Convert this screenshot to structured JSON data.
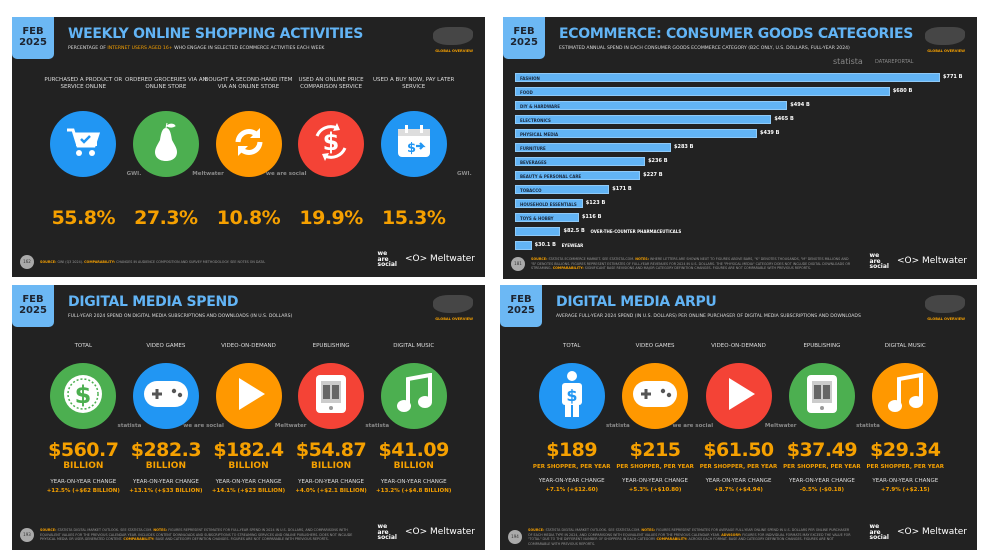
{
  "slides": [
    {
      "date": [
        "FEB",
        "2025"
      ],
      "title": "WEEKLY ONLINE SHOPPING ACTIVITIES",
      "subtitle_pre": "PERCENTAGE OF ",
      "subtitle_hl": "INTERNET USERS AGED 16+",
      "subtitle_post": " WHO ENGAGE IN SELECTED ECOMMERCE ACTIVITIES EACH WEEK",
      "region": "GLOBAL OVERVIEW",
      "items": [
        {
          "label": "PURCHASED A PRODUCT OR SERVICE ONLINE",
          "value": "55.8%",
          "icon": "shopping-cart-icon",
          "color": "#2196f3"
        },
        {
          "label": "ORDERED GROCERIES VIA AN ONLINE STORE",
          "value": "27.3%",
          "icon": "pear-icon",
          "color": "#4caf50"
        },
        {
          "label": "BOUGHT A SECOND-HAND ITEM VIA AN ONLINE STORE",
          "value": "10.8%",
          "icon": "recycle-arrows-icon",
          "color": "#ff9800"
        },
        {
          "label": "USED AN ONLINE PRICE COMPARISON SERVICE",
          "value": "19.9%",
          "icon": "price-compare-icon",
          "color": "#f44336"
        },
        {
          "label": "USED A BUY NOW, PAY LATER SERVICE",
          "value": "15.3%",
          "icon": "calendar-pay-icon",
          "color": "#2196f3"
        }
      ],
      "page": "162",
      "source_label": "SOURCE:",
      "source": "GWI (Q3 2024).",
      "comp_label": "COMPARABILITY:",
      "comp": "CHANGES IN AUDIENCE COMPOSITION AND SURVEY METHODOLOGY. SEE NOTES ON DATA."
    },
    {
      "date": [
        "FEB",
        "2025"
      ],
      "title": "ECOMMERCE: CONSUMER GOODS CATEGORIES",
      "subtitle": "ESTIMATED ANNUAL SPEND IN EACH CONSUMER GOODS ECOMMERCE CATEGORY (B2C ONLY, U.S. DOLLARS, FULL-YEAR 2024)",
      "region": "GLOBAL OVERVIEW",
      "watermark1": "statista",
      "watermark2": "DATAREPORTAL",
      "page": "181",
      "source_label": "SOURCE:",
      "source": "STATISTA ECOMMERCE MARKET. SEE STATISTA.COM.",
      "notes_label": "NOTES:",
      "notes": "WHERE LETTERS ARE SHOWN NEXT TO FIGURES ABOVE BARS, \"K\" DENOTES THOUSANDS, \"M\" DENOTES MILLIONS AND \"B\" DENOTES BILLIONS. FIGURES REPRESENT ESTIMATES OF FULL-YEAR REVENUES FOR 2024 IN U.S. DOLLARS. THE \"PHYSICAL MEDIA\" CATEGORY DOES NOT INCLUDE DIGITAL DOWNLOADS OR STREAMING.",
      "comp_label": "COMPARABILITY:",
      "comp": "SIGNIFICANT BASE REVISIONS AND MAJOR CATEGORY DEFINITION CHANGES. FIGURES ARE NOT COMPARABLE WITH PREVIOUS REPORTS."
    },
    {
      "date": [
        "FEB",
        "2025"
      ],
      "title": "DIGITAL MEDIA SPEND",
      "subtitle": "FULL-YEAR 2024 SPEND ON DIGITAL MEDIA SUBSCRIPTIONS AND DOWNLOADS (IN U.S. DOLLARS)",
      "region": "GLOBAL OVERVIEW",
      "unit": "BILLION",
      "yoy": "YEAR-ON-YEAR CHANGE",
      "items": [
        {
          "label": "TOTAL",
          "value": "$560.7",
          "change": "+12.5% (+$62 BILLION)",
          "icon": "dollar-coin-icon",
          "color": "#4caf50"
        },
        {
          "label": "VIDEO GAMES",
          "value": "$282.3",
          "change": "+13.1% (+$33 BILLION)",
          "icon": "gamepad-icon",
          "color": "#2196f3"
        },
        {
          "label": "VIDEO-ON-DEMAND",
          "value": "$182.4",
          "change": "+14.1% (+$23 BILLION)",
          "icon": "play-icon",
          "color": "#ff9800"
        },
        {
          "label": "EPUBLISHING",
          "value": "$54.87",
          "change": "+4.0% (+$2.1 BILLION)",
          "icon": "ebook-reader-icon",
          "color": "#f44336"
        },
        {
          "label": "DIGITAL MUSIC",
          "value": "$41.09",
          "change": "+13.2% (+$4.8 BILLION)",
          "icon": "music-note-icon",
          "color": "#4caf50"
        }
      ],
      "page": "193",
      "source_label": "SOURCE:",
      "source": "STATISTA DIGITAL MARKET OUTLOOK. SEE STATISTA.COM.",
      "notes_label": "NOTES:",
      "notes": "FIGURES REPRESENT ESTIMATES FOR FULL-YEAR SPEND IN 2024 IN U.S. DOLLARS, AND COMPARISONS WITH EQUIVALENT VALUES FOR THE PREVIOUS CALENDAR YEAR. INCLUDES CONTENT DOWNLOADS AND SUBSCRIPTIONS TO STREAMING SERVICES AND ONLINE PUBLISHERS. DOES NOT INCLUDE PHYSICAL MEDIA OR USER-GENERATED CONTENT.",
      "comp_label": "COMPARABILITY:",
      "comp": "BASE AND CATEGORY DEFINITION CHANGES. FIGURES ARE NOT COMPARABLE WITH PREVIOUS REPORTS."
    },
    {
      "date": [
        "FEB",
        "2025"
      ],
      "title": "DIGITAL MEDIA ARPU",
      "subtitle": "AVERAGE FULL-YEAR 2024 SPEND (IN U.S. DOLLARS) PER ONLINE PURCHASER OF DIGITAL MEDIA SUBSCRIPTIONS AND DOWNLOADS",
      "region": "GLOBAL OVERVIEW",
      "unit": "PER SHOPPER, PER YEAR",
      "yoy": "YEAR-ON-YEAR CHANGE",
      "items": [
        {
          "label": "TOTAL",
          "value": "$189",
          "change": "+7.1% (+$12.60)",
          "icon": "person-dollar-icon",
          "color": "#2196f3"
        },
        {
          "label": "VIDEO GAMES",
          "value": "$215",
          "change": "+5.3% (+$10.80)",
          "icon": "gamepad-icon",
          "color": "#ff9800"
        },
        {
          "label": "VIDEO-ON-DEMAND",
          "value": "$61.50",
          "change": "+8.7% (+$4.94)",
          "icon": "play-icon",
          "color": "#f44336"
        },
        {
          "label": "EPUBLISHING",
          "value": "$37.49",
          "change": "-0.5% (-$0.18)",
          "icon": "ebook-reader-icon",
          "color": "#4caf50"
        },
        {
          "label": "DIGITAL MUSIC",
          "value": "$29.34",
          "change": "+7.9% (+$2.15)",
          "icon": "music-note-icon",
          "color": "#ff9800"
        }
      ],
      "page": "194",
      "source_label": "SOURCE:",
      "source": "STATISTA DIGITAL MARKET OUTLOOK. SEE STATISTA.COM.",
      "notes_label": "NOTES:",
      "notes": "FIGURES REPRESENT ESTIMATES FOR AVERAGE FULL-YEAR ONLINE SPEND IN U.S. DOLLARS PER ONLINE PURCHASER OF EACH MEDIA TYPE IN 2024, AND COMPARISONS WITH EQUIVALENT VALUES FOR THE PREVIOUS CALENDAR YEAR.",
      "adv_label": "ADVISORY:",
      "adv": "FIGURES FOR INDIVIDUAL FORMATS MAY EXCEED THE VALUE FOR \"TOTAL\" DUE TO THE DIFFERENT NUMBER OF SHOPPERS IN EACH CATEGORY.",
      "comp_label": "COMPARABILITY:",
      "comp": "ACROSS EACH FORMAT. BASE AND CATEGORY DEFINITION CHANGES. FIGURES ARE NOT COMPARABLE WITH PREVIOUS REPORTS."
    }
  ],
  "brand": {
    "was": [
      "we",
      "are",
      "social"
    ],
    "meltwater": "Meltwater",
    "partner_marks": [
      "GWI.",
      "Meltwater",
      "we are social",
      "statista"
    ]
  },
  "chart_data": {
    "type": "bar",
    "orientation": "horizontal",
    "title": "ECOMMERCE: CONSUMER GOODS CATEGORIES",
    "unit": "US$ billions",
    "categories": [
      "FASHION",
      "FOOD",
      "DIY & HARDWARE",
      "ELECTRONICS",
      "PHYSICAL MEDIA",
      "FURNITURE",
      "BEVERAGES",
      "BEAUTY & PERSONAL CARE",
      "TOBACCO",
      "HOUSEHOLD ESSENTIALS",
      "TOYS & HOBBY",
      "OVER-THE-COUNTER PHARMACEUTICALS",
      "EYEWEAR"
    ],
    "values": [
      771,
      680,
      494,
      465,
      439,
      283,
      236,
      227,
      171,
      123,
      116,
      82.5,
      30.1
    ],
    "labels": [
      "$771 B",
      "$680 B",
      "$494 B",
      "$465 B",
      "$439 B",
      "$283 B",
      "$236 B",
      "$227 B",
      "$171 B",
      "$123 B",
      "$116 B",
      "$82.5 B",
      "$30.1 B"
    ],
    "color": "#62b4f5",
    "grid": false
  }
}
